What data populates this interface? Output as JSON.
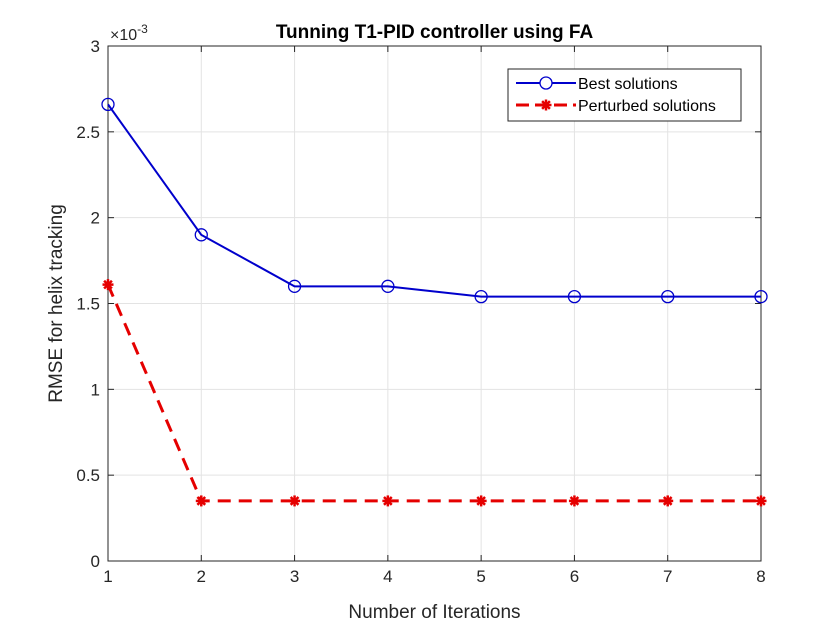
{
  "chart_data": {
    "type": "line",
    "title": "Tunning T1-PID controller using FA",
    "xlabel": "Number of Iterations",
    "ylabel": "RMSE for helix tracking",
    "y_exponent_label": "×10",
    "y_exponent_power": "-3",
    "xlim": [
      1,
      8
    ],
    "ylim": [
      0,
      3
    ],
    "x_ticks": [
      1,
      2,
      3,
      4,
      5,
      6,
      7,
      8
    ],
    "y_ticks": [
      0,
      0.5,
      1,
      1.5,
      2,
      2.5,
      3
    ],
    "y_tick_labels": [
      "0",
      "0.5",
      "1",
      "1.5",
      "2",
      "2.5",
      "3"
    ],
    "grid": true,
    "legend_position": "top-right",
    "x": [
      1,
      2,
      3,
      4,
      5,
      6,
      7,
      8
    ],
    "series": [
      {
        "name": "Best solutions",
        "values": [
          2.66,
          1.9,
          1.6,
          1.6,
          1.54,
          1.54,
          1.54,
          1.54
        ],
        "color": "#0000cc",
        "line_style": "solid",
        "marker": "circle"
      },
      {
        "name": "Perturbed solutions",
        "values": [
          1.61,
          0.35,
          0.35,
          0.35,
          0.35,
          0.35,
          0.35,
          0.35
        ],
        "color": "#e50000",
        "line_style": "dashed",
        "marker": "asterisk"
      }
    ]
  }
}
